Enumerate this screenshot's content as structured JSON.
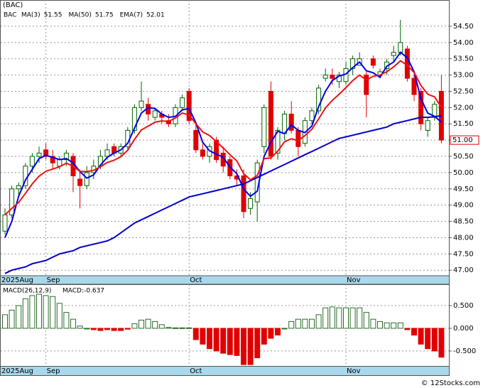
{
  "chart_data": [
    {
      "type": "candlestick",
      "title": "(BAC)",
      "symbol": "BAC",
      "categories": [
        "2025Aug",
        null,
        null,
        null,
        null,
        null,
        "Sep",
        null,
        null,
        null,
        null,
        null,
        null,
        null,
        null,
        null,
        null,
        null,
        null,
        null,
        null,
        null,
        null,
        null,
        null,
        null,
        null,
        "Oct",
        null,
        null,
        null,
        null,
        null,
        null,
        null,
        null,
        null,
        null,
        null,
        null,
        null,
        null,
        null,
        null,
        null,
        null,
        null,
        null,
        null,
        null,
        "Nov",
        null,
        null,
        null,
        null,
        null,
        null,
        null,
        null,
        null,
        null,
        null,
        null,
        null,
        null
      ],
      "open": [
        48.2,
        48.7,
        49.5,
        49.6,
        50.2,
        50.5,
        50.7,
        50.5,
        50.2,
        50.4,
        50.5,
        49.8,
        49.6,
        50.0,
        50.2,
        50.5,
        50.8,
        50.6,
        50.8,
        51.3,
        52.0,
        52.1,
        51.7,
        51.8,
        51.6,
        51.5,
        52.0,
        52.5,
        51.3,
        50.7,
        50.5,
        51.0,
        50.6,
        50.4,
        49.9,
        49.9,
        48.9,
        49.1,
        50.8,
        52.5,
        50.6,
        51.2,
        51.8,
        51.3,
        50.9,
        51.6,
        51.9,
        52.9,
        53.0,
        52.8,
        52.8,
        53.2,
        53.3,
        53.0,
        53.5,
        53.0,
        53.2,
        53.6,
        53.7,
        53.8,
        52.9,
        52.5,
        51.3,
        51.7,
        52.5
      ],
      "high": [
        48.9,
        49.6,
        49.7,
        50.3,
        50.6,
        50.8,
        50.9,
        50.7,
        50.5,
        50.7,
        50.6,
        50.1,
        50.2,
        50.4,
        50.7,
        50.9,
        50.9,
        50.9,
        51.4,
        52.1,
        52.8,
        52.3,
        52.0,
        51.9,
        51.8,
        52.1,
        52.4,
        52.6,
        51.5,
        50.9,
        50.9,
        51.1,
        50.8,
        50.5,
        50.1,
        50.1,
        49.4,
        50.4,
        52.1,
        52.8,
        51.4,
        51.9,
        52.2,
        51.4,
        51.7,
        52.0,
        52.7,
        53.2,
        53.2,
        53.1,
        53.4,
        53.6,
        53.7,
        53.1,
        53.6,
        53.2,
        53.5,
        53.9,
        54.7,
        53.9,
        53.0,
        52.6,
        51.7,
        52.2,
        53.0
      ],
      "low": [
        48.1,
        48.6,
        49.3,
        49.5,
        50.0,
        50.3,
        50.4,
        50.1,
        50.1,
        50.2,
        49.4,
        48.9,
        49.5,
        49.8,
        50.1,
        50.4,
        50.5,
        50.5,
        50.7,
        51.2,
        51.9,
        51.6,
        51.6,
        51.5,
        51.4,
        51.4,
        51.9,
        51.5,
        50.6,
        50.4,
        50.3,
        50.3,
        50.0,
        49.8,
        49.6,
        48.6,
        48.7,
        48.5,
        50.6,
        50.4,
        50.4,
        51.0,
        51.2,
        50.5,
        50.8,
        51.5,
        51.8,
        52.8,
        52.7,
        52.6,
        52.7,
        53.0,
        53.3,
        51.7,
        53.2,
        52.9,
        53.0,
        53.4,
        53.6,
        52.8,
        52.2,
        51.3,
        51.1,
        51.6,
        50.9
      ],
      "close": [
        48.7,
        49.5,
        49.6,
        50.2,
        50.5,
        50.6,
        50.5,
        50.3,
        50.4,
        50.6,
        49.9,
        49.6,
        50.0,
        50.2,
        50.5,
        50.7,
        50.6,
        50.8,
        51.3,
        52.0,
        52.2,
        51.8,
        51.9,
        51.7,
        51.5,
        52.0,
        52.3,
        51.6,
        50.7,
        50.5,
        50.8,
        50.4,
        50.2,
        49.9,
        49.8,
        48.8,
        49.2,
        50.3,
        52.0,
        50.5,
        51.3,
        51.8,
        51.3,
        50.8,
        51.6,
        51.9,
        52.6,
        53.0,
        52.9,
        53.0,
        53.2,
        53.5,
        53.5,
        52.4,
        53.3,
        53.1,
        53.4,
        53.7,
        54.0,
        52.9,
        52.4,
        51.5,
        51.6,
        52.1,
        51.0
      ],
      "up_color": "#006400",
      "down_color": "#e00000",
      "lines": [
        {
          "name": "MA(3)",
          "color": "#0000ee",
          "legend_value": 51.55,
          "values": [
            48.0,
            48.5,
            49.27,
            49.77,
            50.1,
            50.43,
            50.53,
            50.47,
            50.4,
            50.43,
            50.3,
            50.03,
            49.83,
            49.93,
            50.23,
            50.47,
            50.6,
            50.7,
            50.9,
            51.37,
            51.83,
            52.0,
            51.97,
            51.8,
            51.7,
            51.73,
            51.93,
            51.97,
            51.53,
            50.93,
            50.67,
            50.57,
            50.47,
            50.17,
            49.97,
            49.5,
            49.27,
            49.43,
            50.5,
            50.93,
            51.27,
            51.2,
            51.47,
            51.3,
            51.23,
            51.43,
            52.03,
            52.5,
            52.83,
            52.97,
            53.03,
            53.23,
            53.4,
            53.13,
            53.07,
            52.93,
            53.27,
            53.4,
            53.7,
            53.53,
            53.1,
            52.27,
            51.83,
            51.73,
            51.55
          ]
        },
        {
          "name": "MA(50)",
          "color": "#0000cc",
          "legend_value": 51.75,
          "values": [
            46.9,
            47.0,
            47.05,
            47.1,
            47.2,
            47.25,
            47.3,
            47.4,
            47.5,
            47.55,
            47.6,
            47.7,
            47.75,
            47.8,
            47.85,
            47.9,
            48.0,
            48.15,
            48.3,
            48.45,
            48.55,
            48.65,
            48.75,
            48.85,
            48.95,
            49.05,
            49.15,
            49.25,
            49.3,
            49.35,
            49.4,
            49.45,
            49.5,
            49.55,
            49.6,
            49.65,
            49.75,
            49.85,
            49.95,
            50.05,
            50.15,
            50.25,
            50.35,
            50.45,
            50.55,
            50.65,
            50.75,
            50.85,
            50.95,
            51.05,
            51.1,
            51.15,
            51.2,
            51.25,
            51.3,
            51.35,
            51.4,
            51.5,
            51.55,
            51.6,
            51.65,
            51.7,
            51.7,
            51.72,
            51.75
          ]
        },
        {
          "name": "EMA(7)",
          "color": "#ee1111",
          "legend_value": 52.01,
          "values": [
            48.7,
            48.9,
            49.08,
            49.36,
            49.65,
            49.89,
            50.04,
            50.11,
            50.18,
            50.29,
            50.19,
            50.04,
            50.03,
            50.07,
            50.18,
            50.31,
            50.38,
            50.49,
            50.69,
            51.02,
            51.31,
            51.43,
            51.55,
            51.59,
            51.57,
            51.68,
            51.83,
            51.77,
            51.5,
            51.25,
            51.14,
            50.95,
            50.76,
            50.55,
            50.36,
            49.97,
            49.78,
            49.91,
            50.43,
            50.45,
            50.66,
            50.95,
            51.04,
            50.98,
            51.14,
            51.33,
            51.65,
            51.99,
            52.22,
            52.41,
            52.61,
            52.83,
            53.0,
            52.85,
            52.96,
            53.0,
            53.1,
            53.25,
            53.44,
            53.3,
            53.08,
            52.68,
            52.41,
            52.33,
            52.01
          ]
        }
      ],
      "last_price": {
        "value": 51.0,
        "label": "51.00"
      },
      "ylim": [
        46.83,
        54.87
      ],
      "yticks": [
        {
          "value": 47.0,
          "label": "47.00"
        },
        {
          "value": 47.5,
          "label": "47.50"
        },
        {
          "value": 48.0,
          "label": "48.00"
        },
        {
          "value": 48.5,
          "label": "48.50"
        },
        {
          "value": 49.0,
          "label": "49.00"
        },
        {
          "value": 49.5,
          "label": "49.50"
        },
        {
          "value": 50.0,
          "label": "50.00"
        },
        {
          "value": 50.5,
          "label": "50.50"
        },
        {
          "value": 51.0,
          "label": "51.00"
        },
        {
          "value": 51.5,
          "label": "51.50"
        },
        {
          "value": 52.0,
          "label": "52.00"
        },
        {
          "value": 52.5,
          "label": "52.50"
        },
        {
          "value": 53.0,
          "label": "53.00"
        },
        {
          "value": 53.5,
          "label": "53.50"
        },
        {
          "value": 54.0,
          "label": "54.00"
        },
        {
          "value": 54.5,
          "label": "54.50"
        }
      ],
      "grid": true
    },
    {
      "type": "bar",
      "title": "MACD(26,12,9)",
      "value_text": "MACD:-0.637",
      "categories": [
        "2025Aug",
        null,
        null,
        null,
        null,
        null,
        "Sep",
        null,
        null,
        null,
        null,
        null,
        null,
        null,
        null,
        null,
        null,
        null,
        null,
        null,
        null,
        null,
        null,
        null,
        null,
        null,
        null,
        "Oct",
        null,
        null,
        null,
        null,
        null,
        null,
        null,
        null,
        null,
        null,
        null,
        null,
        null,
        null,
        null,
        null,
        null,
        null,
        null,
        null,
        null,
        null,
        "Nov",
        null,
        null,
        null,
        null,
        null,
        null,
        null,
        null,
        null,
        null,
        null,
        null,
        null,
        null
      ],
      "values": [
        0.3,
        0.4,
        0.5,
        0.65,
        0.72,
        0.75,
        0.72,
        0.7,
        0.55,
        0.35,
        0.2,
        0.05,
        0.0,
        -0.03,
        -0.05,
        -0.03,
        -0.05,
        -0.05,
        -0.02,
        0.1,
        0.18,
        0.2,
        0.15,
        0.08,
        0.02,
        0.01,
        0.01,
        0.01,
        -0.25,
        -0.35,
        -0.45,
        -0.5,
        -0.55,
        -0.58,
        -0.6,
        -0.8,
        -0.8,
        -0.65,
        -0.35,
        -0.22,
        -0.15,
        0.0,
        0.15,
        0.2,
        0.2,
        0.2,
        0.3,
        0.45,
        0.47,
        0.45,
        0.45,
        0.45,
        0.45,
        0.35,
        0.2,
        0.15,
        0.12,
        0.12,
        0.12,
        -0.03,
        -0.15,
        -0.35,
        -0.45,
        -0.5,
        -0.637
      ],
      "up_color": "#2a6b2a",
      "down_color": "#e00000",
      "ylim": [
        -0.83,
        0.97
      ],
      "yticks": [
        {
          "value": 0.5,
          "label": "0.500"
        },
        {
          "value": 0.0,
          "label": "0.000"
        },
        {
          "value": -0.5,
          "label": "-0.500"
        }
      ],
      "grid": true
    }
  ],
  "footer": "© 12Stocks.com"
}
